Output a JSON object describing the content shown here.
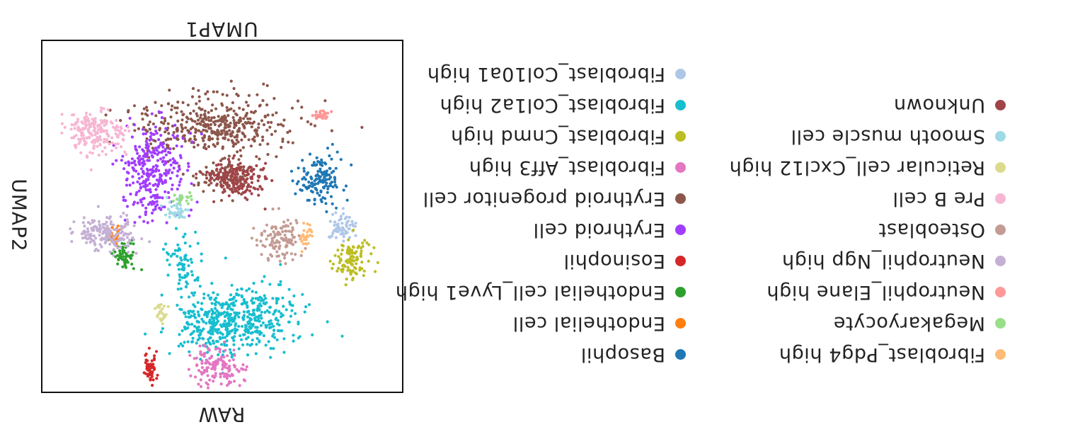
{
  "chart_data": {
    "type": "scatter",
    "title": "UMAP1",
    "xlabel": "RAW",
    "ylabel": "UMAP2",
    "grid": false,
    "axis_ticks": false,
    "legend_placement": "right",
    "orientation": "rotated 180 degrees",
    "series": [
      {
        "name": "Fibroblast_Col10a1 high",
        "color": "#aec7e8",
        "clusters": [
          [
            -0.66,
            0.06,
            0.04,
            0.04,
            60
          ]
        ]
      },
      {
        "name": "Fibroblast_Col1a2 high",
        "color": "#17becf",
        "clusters": [
          [
            -0.18,
            0.58,
            0.14,
            0.09,
            260
          ],
          [
            0.05,
            0.6,
            0.12,
            0.09,
            260
          ],
          [
            0.22,
            0.25,
            0.05,
            0.1,
            70
          ]
        ]
      },
      {
        "name": "Fibroblast_Cnmd high",
        "color": "#bcbd22",
        "clusters": [
          [
            -0.72,
            0.25,
            0.05,
            0.06,
            110
          ]
        ]
      },
      {
        "name": "Fibroblast_Aff3 high",
        "color": "#e377c2",
        "clusters": [
          [
            0.02,
            0.85,
            0.07,
            0.06,
            140
          ]
        ]
      },
      {
        "name": "Erythroid progenitor cell",
        "color": "#8c564b",
        "clusters": [
          [
            0.05,
            -0.52,
            0.22,
            0.08,
            420
          ],
          [
            -0.02,
            -0.22,
            0.08,
            0.05,
            90
          ]
        ]
      },
      {
        "name": "Erythroid cell",
        "color": "#a13dff",
        "clusters": [
          [
            0.38,
            -0.26,
            0.08,
            0.14,
            300
          ]
        ]
      },
      {
        "name": "Eosinophil",
        "color": "#d62728",
        "clusters": [
          [
            0.4,
            0.88,
            0.02,
            0.05,
            50
          ]
        ]
      },
      {
        "name": "Endothelial cell_Lyve1 high",
        "color": "#2ca02c",
        "clusters": [
          [
            0.55,
            0.22,
            0.03,
            0.04,
            60
          ]
        ]
      },
      {
        "name": "Endothelial cell",
        "color": "#ff7f0e",
        "clusters": [
          [
            0.6,
            0.12,
            0.02,
            0.03,
            30
          ]
        ]
      },
      {
        "name": "Basophil",
        "color": "#1f77b4",
        "clusters": [
          [
            -0.55,
            -0.2,
            0.06,
            0.07,
            140
          ]
        ]
      },
      {
        "name": "Unknown",
        "color": "#a04448",
        "clusters": [
          [
            -0.08,
            -0.22,
            0.08,
            0.05,
            180
          ]
        ]
      },
      {
        "name": "Smooth muscle cell",
        "color": "#9edae5",
        "clusters": [
          [
            0.24,
            -0.03,
            0.03,
            0.03,
            40
          ]
        ]
      },
      {
        "name": "Reticular cell_Cxcl12 high",
        "color": "#dbdb8d",
        "clusters": [
          [
            0.34,
            0.55,
            0.02,
            0.04,
            25
          ]
        ]
      },
      {
        "name": "Pre B cell",
        "color": "#f7b6d2",
        "clusters": [
          [
            0.7,
            -0.48,
            0.08,
            0.06,
            200
          ]
        ]
      },
      {
        "name": "Osteoblast",
        "color": "#c49c94",
        "clusters": [
          [
            -0.32,
            0.14,
            0.06,
            0.06,
            120
          ]
        ]
      },
      {
        "name": "Neutrophil_Ngp high",
        "color": "#c5b0d5",
        "clusters": [
          [
            0.64,
            0.1,
            0.08,
            0.05,
            170
          ]
        ]
      },
      {
        "name": "Neutrophil_Elane high",
        "color": "#ff9896",
        "clusters": [
          [
            -0.55,
            -0.58,
            0.02,
            0.02,
            25
          ]
        ]
      },
      {
        "name": "Megakaryocyte",
        "color": "#98df8a",
        "clusters": [
          [
            0.22,
            -0.1,
            0.03,
            0.015,
            20
          ]
        ]
      },
      {
        "name": "Fibroblast_Pdg4 high",
        "color": "#ffbb78",
        "clusters": [
          [
            -0.46,
            0.12,
            0.02,
            0.03,
            30
          ]
        ]
      }
    ],
    "xlim": [
      -1,
      1
    ],
    "ylim": [
      -1,
      1
    ]
  }
}
